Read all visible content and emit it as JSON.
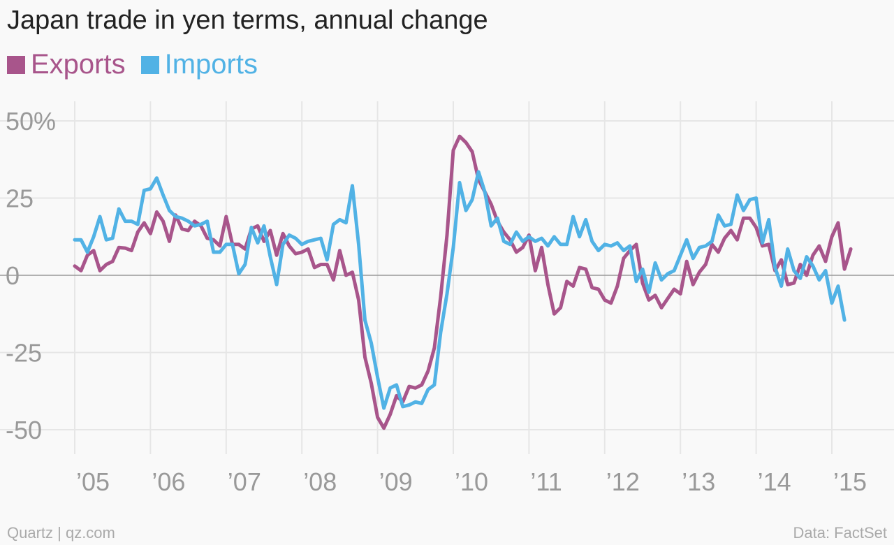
{
  "chart_data": {
    "type": "line",
    "title": "Japan trade in yen terms, annual change",
    "x_start": "2005-01",
    "x_end": "2015-03",
    "x_ticks": [
      "’05",
      "’06",
      "’07",
      "’08",
      "’09",
      "’10",
      "’11",
      "’12",
      "’13",
      "’14",
      "’15"
    ],
    "y_ticks": [
      50,
      25,
      0,
      -25,
      -50
    ],
    "y_tick_labels": [
      "50%",
      "25",
      "0",
      "-25",
      "-50"
    ],
    "ylim": [
      -58,
      58
    ],
    "grid": true,
    "legend_position": "top-left",
    "series": [
      {
        "name": "Exports",
        "color": "#a8558b",
        "values": [
          3,
          1.5,
          6.5,
          8,
          1.5,
          3.5,
          4.5,
          9,
          8.8,
          8,
          14,
          17,
          13.5,
          20.5,
          17.5,
          11,
          19.5,
          15,
          14.5,
          17.5,
          16,
          12,
          11.5,
          9.5,
          19,
          10,
          10,
          8.5,
          15,
          16,
          11,
          14.5,
          6.5,
          13.5,
          9.5,
          7,
          7.5,
          8.5,
          2.5,
          3.5,
          3.5,
          -1.5,
          8,
          0,
          1,
          -8,
          -26.5,
          -35,
          -46,
          -49.5,
          -45,
          -39,
          -41,
          -36,
          -36.5,
          -35.5,
          -31,
          -23.5,
          -7,
          13,
          40.5,
          45,
          43,
          40,
          31,
          27,
          23,
          17.5,
          14,
          11.5,
          7.5,
          9,
          13,
          1.5,
          9,
          -3,
          -12.5,
          -10.5,
          -2,
          -3.5,
          2.5,
          2,
          -4,
          -4.5,
          -8,
          -9,
          -3.5,
          5.5,
          8,
          10,
          -2.5,
          -8,
          -6.5,
          -10.5,
          -7.5,
          -4.5,
          -6,
          4.5,
          -3,
          1,
          3.5,
          10,
          7.5,
          12,
          14.5,
          11.5,
          18.5,
          18.5,
          15.5,
          9.5,
          10,
          1.5,
          5,
          -3,
          -2.5,
          3.5,
          0,
          6.5,
          9.5,
          4.5,
          12.5,
          17,
          2,
          8.5
        ],
        "end_value": 8.5
      },
      {
        "name": "Imports",
        "color": "#51b2e5",
        "values": [
          11.5,
          11.5,
          7.5,
          12.5,
          19,
          11.5,
          12,
          21.5,
          17.5,
          17.5,
          16.5,
          27.5,
          28,
          31.5,
          26,
          21,
          19,
          18.5,
          17.5,
          16,
          16.5,
          17.5,
          7.5,
          7.5,
          10,
          10,
          0.5,
          3.5,
          15.5,
          10.5,
          16,
          6,
          -3,
          10,
          13,
          12,
          10,
          11,
          11.5,
          12,
          5,
          16.5,
          18,
          17,
          29,
          10,
          -14.5,
          -22,
          -33,
          -43,
          -36.5,
          -35.5,
          -42.5,
          -42,
          -41,
          -41.5,
          -37,
          -35.5,
          -18.5,
          -6,
          9,
          30,
          21,
          24.5,
          33.5,
          27,
          16,
          18.5,
          11,
          10,
          14,
          11,
          12.5,
          11,
          12,
          9.5,
          12.5,
          10,
          10,
          19,
          12.5,
          18,
          11,
          8,
          10,
          9.5,
          10.5,
          8,
          9.5,
          -2,
          2,
          -5.5,
          4,
          -1.5,
          0.5,
          1.5,
          6.5,
          11.5,
          5.5,
          9,
          9.5,
          11,
          19.5,
          16,
          16.5,
          26,
          21,
          24.5,
          25,
          10.5,
          18,
          2.5,
          -3.5,
          8.5,
          1.5,
          -1,
          6,
          3,
          -1.5,
          1.5,
          -9,
          -3.5,
          -14.5
        ],
        "end_value": -14.5
      }
    ]
  },
  "footer": {
    "source_left": "Quartz | qz.com",
    "source_right": "Data: FactSet"
  }
}
